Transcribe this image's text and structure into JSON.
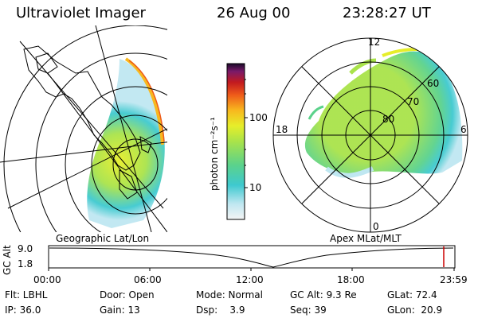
{
  "header": {
    "title": "Ultraviolet Imager",
    "date": "26 Aug 00",
    "time": "23:28:27 UT"
  },
  "left_panel": {
    "label": "Geographic Lat/Lon"
  },
  "right_panel": {
    "label": "Apex MLat/MLT",
    "mlt_labels": {
      "top": "12",
      "left": "18",
      "right": "6",
      "bottom": "0"
    },
    "lat_labels": [
      "60",
      "70",
      "80"
    ]
  },
  "colorbar": {
    "unit_label": "photon cm⁻²s⁻¹",
    "ticks": [
      "100",
      "10"
    ],
    "scale": "log",
    "colors": [
      "#f4f4f4",
      "#bfe7f1",
      "#3ec9cf",
      "#5bd28b",
      "#a9e34a",
      "#e6ee2a",
      "#f8b81e",
      "#ee5a1a",
      "#c21a1f",
      "#7a1a6a",
      "#1a0a2a"
    ]
  },
  "timeline": {
    "ylabel": "GC Alt",
    "y_ticks": [
      "9.0",
      "1.8"
    ],
    "x_ticks": [
      "00:00",
      "06:00",
      "12:00",
      "18:00",
      "23:59"
    ],
    "current_marker_color": "#cc0000"
  },
  "info": {
    "row1": [
      "Flt: LBHL",
      "Door: Open",
      "Mode: Normal",
      "GC Alt: 9.3 Re",
      "GLat: 72.4"
    ],
    "row2": [
      "IP: 36.0",
      "Gain: 13",
      "Dsp:    3.9",
      "Seq: 39",
      "GLon:  20.9"
    ]
  }
}
